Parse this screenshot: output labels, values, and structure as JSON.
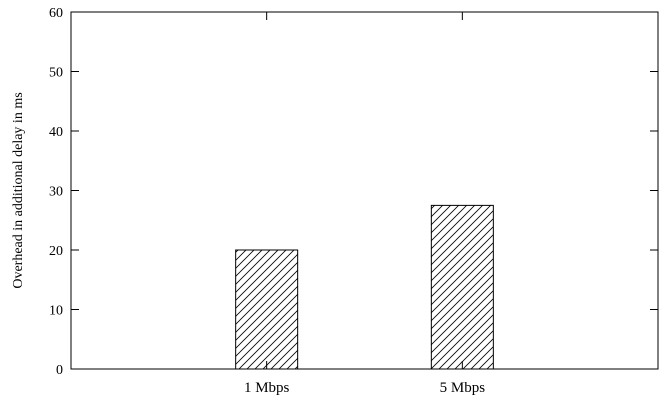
{
  "chart_data": {
    "type": "bar",
    "categories": [
      "1 Mbps",
      "5 Mbps"
    ],
    "values": [
      20,
      27.5
    ],
    "ylabel": "Overhead in additional delay in ms",
    "xlabel": "",
    "ylim": [
      0,
      60
    ],
    "yticks": [
      "0",
      "10",
      "20",
      "30",
      "40",
      "50",
      "60"
    ],
    "legend": "none",
    "grid": false,
    "bar_fill": "diagonal-hatch",
    "colors": {
      "bar_stroke": "#000000",
      "hatch": "#000000",
      "axis": "#000000",
      "background": "#ffffff"
    }
  }
}
